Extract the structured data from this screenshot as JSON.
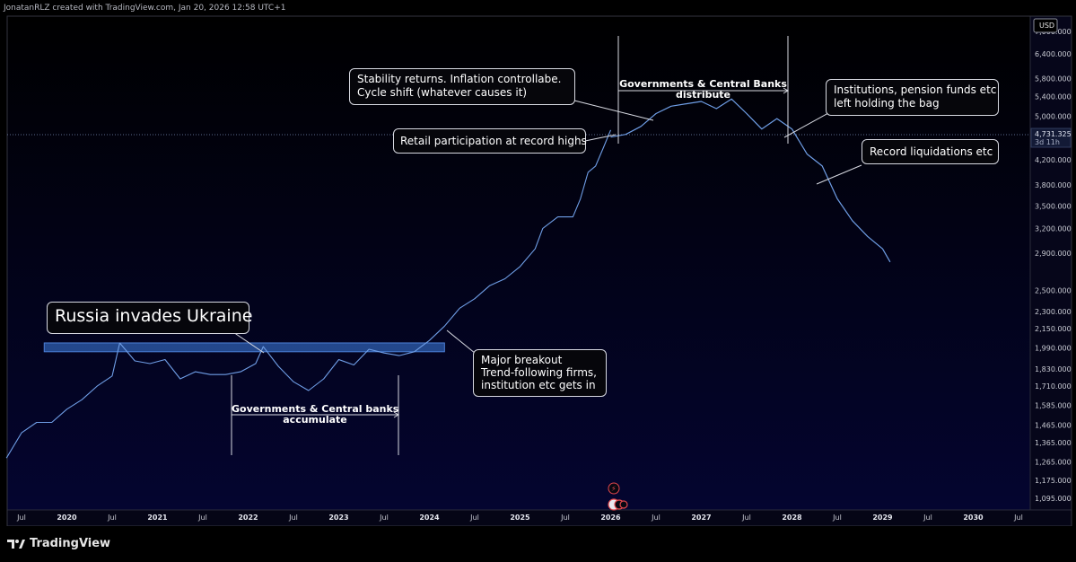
{
  "header": {
    "text": "JonatanRLZ created with TradingView.com, Jan 20, 2026 12:58 UTC+1"
  },
  "price_scale": {
    "currency": "USD",
    "labels": [
      "7,000.000",
      "6,400.000",
      "5,800.000",
      "5,400.000",
      "5,000.000",
      "4,200.000",
      "3,800.000",
      "3,500.000",
      "3,200.000",
      "2,900.000",
      "2,500.000",
      "2,300.000",
      "2,150.000",
      "1,990.000",
      "1,830.000",
      "1,710.000",
      "1,585.000",
      "1,465.000",
      "1,365.000",
      "1,265.000",
      "1,175.000",
      "1,095.000"
    ],
    "current_price": "4,731.325",
    "countdown": "3d 11h"
  },
  "time_scale": {
    "labels": [
      "Jul",
      "2020",
      "Jul",
      "2021",
      "Jul",
      "2022",
      "Jul",
      "2023",
      "Jul",
      "2024",
      "Jul",
      "2025",
      "Jul",
      "2026",
      "Jul",
      "2027",
      "Jul",
      "2028",
      "Jul",
      "2029",
      "Jul",
      "2030",
      "Jul"
    ]
  },
  "annotations": {
    "russia": "Russia invades Ukraine",
    "breakout_line1": "Major breakout",
    "breakout_line2": "Trend-following firms,",
    "breakout_line3": "institution etc gets in",
    "accumulate_line1": "Governments & Central banks",
    "accumulate_line2": "accumulate",
    "stability_line1": "Stability returns. Inflation controllabe.",
    "stability_line2": "Cycle shift (whatever causes it)",
    "retail": "Retail participation at record highs",
    "distribute_line1": "Governments & Central Banks",
    "distribute_line2": "distribute",
    "institutions_line1": "Institutions, pension funds etc",
    "institutions_line2": "left holding the bag",
    "liquidations": "Record liquidations etc"
  },
  "branding": {
    "name": "TradingView"
  },
  "colors": {
    "background": "#000000",
    "chart_bg_bottom": "#030424",
    "line": "#6f9ee6",
    "zone": "#2f5fb0",
    "annotation_border": "#d7d9e1"
  },
  "chart_data": {
    "type": "line",
    "scale": "log",
    "currency": "USD",
    "x_range": [
      "2019-07",
      "2030-07"
    ],
    "ylim": [
      1095,
      7000
    ],
    "grid": false,
    "series": [
      {
        "kind": "historical",
        "x": [
          "2019-05",
          "2019-07",
          "2019-09",
          "2019-11",
          "2020-01",
          "2020-03",
          "2020-05",
          "2020-07",
          "2020-08",
          "2020-10",
          "2020-12",
          "2021-02",
          "2021-04",
          "2021-06",
          "2021-08",
          "2021-10",
          "2021-12",
          "2022-02",
          "2022-03",
          "2022-05",
          "2022-07",
          "2022-09",
          "2022-11",
          "2023-01",
          "2023-03",
          "2023-05",
          "2023-07",
          "2023-09",
          "2023-11",
          "2024-01",
          "2024-03",
          "2024-05",
          "2024-07",
          "2024-09",
          "2024-11",
          "2025-01",
          "2025-03",
          "2025-04",
          "2025-06",
          "2025-08",
          "2025-09",
          "2025-10",
          "2025-11",
          "2025-12",
          "2026-01"
        ],
        "y": [
          1285,
          1420,
          1480,
          1480,
          1560,
          1620,
          1710,
          1780,
          2030,
          1890,
          1870,
          1900,
          1760,
          1810,
          1790,
          1790,
          1810,
          1870,
          2000,
          1850,
          1740,
          1680,
          1760,
          1900,
          1860,
          1980,
          1950,
          1930,
          1960,
          2050,
          2170,
          2330,
          2420,
          2550,
          2620,
          2750,
          2950,
          3200,
          3350,
          3350,
          3600,
          4000,
          4100,
          4400,
          4731
        ]
      },
      {
        "kind": "projection",
        "x": [
          "2026-01",
          "2026-03",
          "2026-05",
          "2026-07",
          "2026-09",
          "2026-11",
          "2027-01",
          "2027-03",
          "2027-05",
          "2027-07",
          "2027-09",
          "2027-11",
          "2028-01",
          "2028-03",
          "2028-05",
          "2028-07",
          "2028-09",
          "2028-11",
          "2029-01",
          "2029-02"
        ],
        "y": [
          4600,
          4650,
          4800,
          5050,
          5200,
          5250,
          5300,
          5150,
          5350,
          5050,
          4750,
          4950,
          4750,
          4300,
          4100,
          3600,
          3300,
          3100,
          2950,
          2800
        ]
      }
    ],
    "horizontal_zone": {
      "x": [
        "2019-10",
        "2024-03"
      ],
      "y": [
        1960,
        2030
      ]
    }
  }
}
